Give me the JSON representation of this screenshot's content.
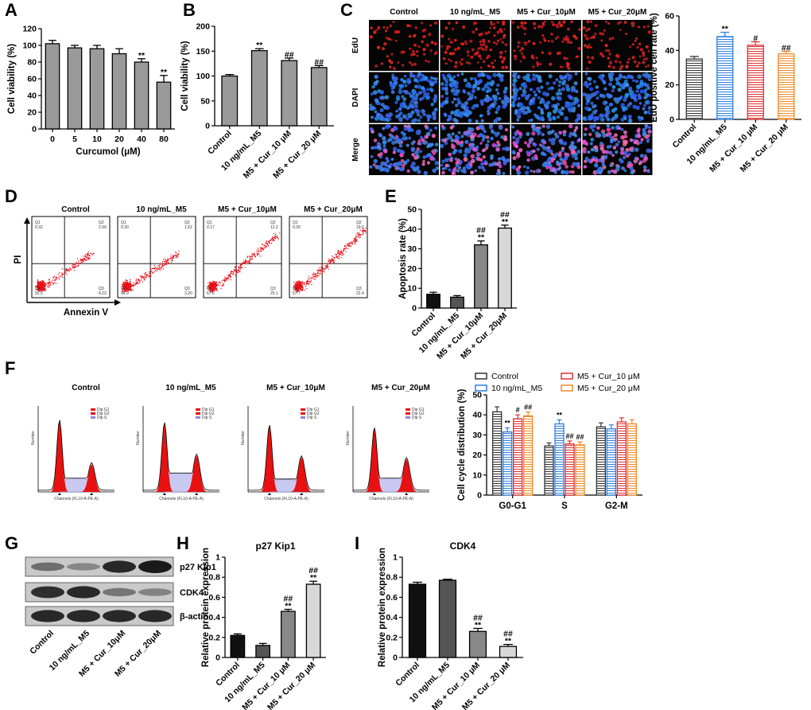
{
  "panels": {
    "A": {
      "label": "A",
      "type": "bar",
      "categories": [
        "0",
        "5",
        "10",
        "20",
        "40",
        "80"
      ],
      "values": [
        102,
        97,
        96,
        90,
        80,
        56
      ],
      "errors": [
        4,
        3,
        4,
        6,
        4,
        8
      ],
      "sig": [
        "",
        "",
        "",
        "",
        "**",
        "**"
      ],
      "xlabel": "Curcumol (μM)",
      "ylabel": "Cell viability (%)",
      "ylim": [
        0,
        120
      ],
      "yticks": [
        0,
        20,
        40,
        60,
        80,
        100,
        120
      ]
    },
    "B": {
      "label": "B",
      "type": "bar",
      "categories": [
        "Control",
        "10 ng/mL_M5",
        "M5 + Cur_10 μM",
        "M5 + Cur_20 μM"
      ],
      "values": [
        100,
        151,
        131,
        117
      ],
      "errors": [
        3,
        4,
        5,
        4
      ],
      "sig": [
        "",
        "**",
        "##",
        "##"
      ],
      "xlabel": "",
      "ylabel": "Cell viability (%)",
      "ylim": [
        0,
        200
      ],
      "yticks": [
        0,
        50,
        100,
        150,
        200
      ]
    },
    "C_bar": {
      "type": "bar",
      "categories": [
        "Control",
        "10 ng/mL_M5",
        "M5 + Cur_10 μM",
        "M5 + Cur_20 μM"
      ],
      "values": [
        35,
        48,
        43,
        38
      ],
      "errors": [
        1.5,
        2.5,
        2,
        1.5
      ],
      "sig": [
        "",
        "**",
        "#",
        "##"
      ],
      "colors": [
        "#333333",
        "#2e7fe0",
        "#e03030",
        "#f08a28"
      ],
      "ylabel": "EdU positive cell rate (%)",
      "ylim": [
        0,
        60
      ],
      "yticks": [
        0,
        20,
        40,
        60
      ]
    },
    "C_img": {
      "label": "C",
      "columns": [
        "Control",
        "10 ng/mL_M5",
        "M5 + Cur_10μM",
        "M5 + Cur_20μM"
      ],
      "rows": [
        "EdU",
        "DAPI",
        "Merge"
      ]
    },
    "D": {
      "label": "D",
      "columns": [
        "Control",
        "10 ng/mL_M5",
        "M5 + Cur_10μM",
        "M5 + Cur_20μM"
      ],
      "xlabel": "Annexin V",
      "ylabel": "PI",
      "quadrant_labels": [
        "Q1",
        "Q2",
        "Q3",
        "Q4"
      ],
      "quadrants": [
        {
          "q1": "0.32",
          "q2": "2.99",
          "q3": "4.23",
          "q4": "92.5"
        },
        {
          "q1": "0.30",
          "q2": "1.62",
          "q3": "3.20",
          "q4": "94.9"
        },
        {
          "q1": "0.17",
          "q2": "12.2",
          "q3": "20.1",
          "q4": "67.6"
        },
        {
          "q1": "0.30",
          "q2": "19.6",
          "q3": "22.4",
          "q4": "57.7"
        }
      ]
    },
    "E": {
      "label": "E",
      "type": "bar",
      "categories": [
        "Control",
        "10 ng/mL_M5",
        "M5 + Cur_10μM",
        "M5 + Cur_20μM"
      ],
      "values": [
        7,
        5.5,
        32,
        40.5
      ],
      "errors": [
        1,
        0.8,
        2,
        1.5
      ],
      "sig_top": [
        "",
        "",
        "##",
        "##"
      ],
      "sig_bottom": [
        "",
        "",
        "**",
        "**"
      ],
      "colors": [
        "#111111",
        "#555555",
        "#888888",
        "#d8d8d8"
      ],
      "ylabel": "Apoptosis rate (%)",
      "ylim": [
        0,
        50
      ],
      "yticks": [
        0,
        10,
        20,
        30,
        40,
        50
      ]
    },
    "F": {
      "label": "F",
      "columns": [
        "Control",
        "10 ng/mL_M5",
        "M5 + Cur_10μM",
        "M5 + Cur_20μM"
      ],
      "hist_legend": [
        "Dip G1",
        "Dip G2",
        "Dip S"
      ],
      "hist_xlabel": "Channels (FL10-A-PE-A)",
      "hist_ylabel": "Number"
    },
    "F_bar": {
      "type": "grouped_bar",
      "categories": [
        "G0-G1",
        "S",
        "G2-M"
      ],
      "legend": "top",
      "ylabel": "Cell cycle distribution (%)",
      "ylim": [
        0,
        50
      ],
      "yticks": [
        0,
        10,
        20,
        30,
        40,
        50
      ],
      "series": [
        {
          "name": "Control",
          "color": "#333333",
          "values": [
            41.5,
            24.5,
            34
          ],
          "errors": [
            2.5,
            1.5,
            2
          ],
          "sig": [
            "",
            "",
            ""
          ]
        },
        {
          "name": "10 ng/mL_M5",
          "color": "#2e7fe0",
          "values": [
            31.5,
            35.5,
            33
          ],
          "errors": [
            2,
            2,
            2
          ],
          "sig": [
            "**",
            "**",
            ""
          ]
        },
        {
          "name": "M5 + Cur_10 μM",
          "color": "#e03030",
          "values": [
            38,
            25.5,
            36.5
          ],
          "errors": [
            2,
            1.5,
            2
          ],
          "sig": [
            "#",
            "##",
            ""
          ]
        },
        {
          "name": "M5 + Cur_20 μM",
          "color": "#f08a28",
          "values": [
            39.5,
            25,
            35.5
          ],
          "errors": [
            2,
            1.5,
            2
          ],
          "sig": [
            "##",
            "##",
            ""
          ]
        }
      ]
    },
    "G": {
      "label": "G",
      "bands": [
        "p27 Kip1",
        "CDK4",
        "β-actin"
      ],
      "lanes": [
        "Control",
        "10 ng/mL_M5",
        "M5 + Cur_10μM",
        "M5 + Cur_20μM"
      ]
    },
    "H": {
      "label": "H",
      "type": "bar",
      "title": "p27 Kip1",
      "categories": [
        "Control",
        "10 ng/mL_M5",
        "M5 + Cur_10 μM",
        "M5 + Cur_20 μM"
      ],
      "values": [
        0.22,
        0.12,
        0.46,
        0.73
      ],
      "errors": [
        0.015,
        0.02,
        0.02,
        0.03
      ],
      "sig_top": [
        "",
        "",
        "##",
        "##"
      ],
      "sig_bottom": [
        "",
        "",
        "**",
        "**"
      ],
      "colors": [
        "#111111",
        "#555555",
        "#888888",
        "#d8d8d8"
      ],
      "ylabel": "Relative protein expression",
      "ylim": [
        0,
        1.0
      ],
      "yticks": [
        0.0,
        0.2,
        0.4,
        0.6,
        0.8,
        1.0
      ]
    },
    "I": {
      "label": "I",
      "type": "bar",
      "title": "CDK4",
      "categories": [
        "Control",
        "10 ng/mL_M5",
        "M5 + Cur_10 μM",
        "M5 + Cur_20 μM"
      ],
      "values": [
        0.73,
        0.77,
        0.26,
        0.11
      ],
      "errors": [
        0.02,
        0.01,
        0.03,
        0.02
      ],
      "sig_top": [
        "",
        "",
        "##",
        "##"
      ],
      "sig_bottom": [
        "",
        "",
        "**",
        "**"
      ],
      "colors": [
        "#111111",
        "#555555",
        "#888888",
        "#d8d8d8"
      ],
      "ylabel": "Relative protein expression",
      "ylim": [
        0,
        1.0
      ],
      "yticks": [
        0.0,
        0.2,
        0.4,
        0.6,
        0.8,
        1.0
      ]
    }
  }
}
